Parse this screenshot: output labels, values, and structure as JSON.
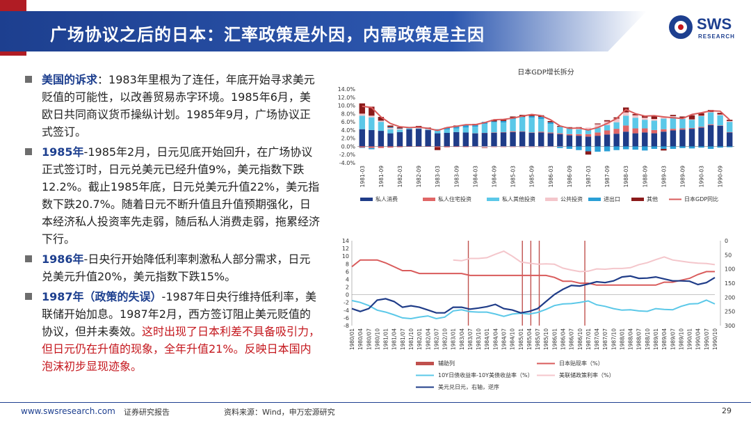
{
  "header": {
    "title": "广场协议之后的日本：汇率政策是外因，内需政策是主因",
    "logo_text": "SWS",
    "logo_sub": "RESEARCH"
  },
  "bullets": [
    {
      "head": "美国的诉求",
      "sep": "：",
      "text": "1983年里根为了连任，年底开始寻求美元贬值的可能性，以改善贸易赤字环境。1985年6月，美欧日共同商议货币操纵计划。1985年9月，广场协议正式签订。",
      "red": ""
    },
    {
      "head": "1985年",
      "sep": "-",
      "text": "1985年2月，日元见底开始回升，在广场协议正式签订时，日元兑美元已经升值9%，美元指数下跌12.2%。截止1985年底，日元兑美元升值22%，美元指数下跌20.7%。随着日元不断升值且升值预期强化，日本经济私人投资率先走弱，随后私人消费走弱，拖累经济下行。",
      "red": ""
    },
    {
      "head": "1986年",
      "sep": "-",
      "text": "日央行开始降低利率刺激私人部分需求，日元兑美元升值20%，美元指数下跌15%。",
      "red": ""
    },
    {
      "head": "1987年（政策的失误）",
      "sep": "-",
      "text": "1987年日央行维持低利率，美联储开始加息。1987年2月，西方签订阻止美元贬值的协议，但并未奏效。",
      "red": "这时出现了日本利差不具备吸引力，但日元仍在升值的现象，全年升值21%。反映日本国内泡沫初步显现迹象。"
    }
  ],
  "footer": {
    "url": "www.swsresearch.com",
    "category": "证券研究报告",
    "source": "资料来源：Wind，申万宏源研究",
    "page": "29"
  },
  "chart_data": [
    {
      "type": "bar",
      "stacked": true,
      "title": "日本GDP增长拆分",
      "ylim": [
        -4,
        14
      ],
      "yticks": [
        "14.0%",
        "12.0%",
        "10.0%",
        "8.0%",
        "6.0%",
        "4.0%",
        "2.0%",
        "0.0%",
        "-2.0%",
        "-4.0%"
      ],
      "categories": [
        "1981-03",
        "1981-06",
        "1981-09",
        "1981-12",
        "1982-03",
        "1982-06",
        "1982-09",
        "1982-12",
        "1983-03",
        "1983-06",
        "1983-09",
        "1983-12",
        "1984-03",
        "1984-06",
        "1984-09",
        "1984-12",
        "1985-03",
        "1985-06",
        "1985-09",
        "1985-12",
        "1986-03",
        "1986-06",
        "1986-09",
        "1986-12",
        "1987-03",
        "1987-06",
        "1987-09",
        "1987-12",
        "1988-03",
        "1988-06",
        "1988-09",
        "1988-12",
        "1989-03",
        "1989-06",
        "1989-09",
        "1989-12",
        "1990-03",
        "1990-06",
        "1990-09",
        "1990-12"
      ],
      "series": [
        {
          "name": "私人消费",
          "color": "#1f3c88",
          "values": [
            4.2,
            4.0,
            3.8,
            3.2,
            3.5,
            4.2,
            4.3,
            4.0,
            3.2,
            3.3,
            3.5,
            3.4,
            3.2,
            3.3,
            3.3,
            3.4,
            3.5,
            3.6,
            3.3,
            3.4,
            3.2,
            3.0,
            2.7,
            2.6,
            2.4,
            2.6,
            2.9,
            3.1,
            3.6,
            3.2,
            3.4,
            3.2,
            3.6,
            3.9,
            4.1,
            4.3,
            4.6,
            5.2,
            5.0,
            3.4
          ]
        },
        {
          "name": "私人住宅投资",
          "color": "#e06666",
          "values": [
            -0.3,
            -0.4,
            -0.4,
            -0.3,
            -0.2,
            -0.1,
            -0.1,
            -0.1,
            -0.2,
            -0.2,
            -0.1,
            -0.1,
            0.0,
            0.0,
            0.1,
            0.1,
            0.2,
            0.1,
            0.1,
            0.2,
            0.2,
            0.2,
            0.3,
            0.4,
            0.6,
            0.8,
            1.0,
            1.2,
            1.5,
            1.2,
            1.0,
            0.8,
            0.6,
            0.4,
            0.3,
            0.2,
            0.2,
            0.2,
            0.1,
            0.1
          ]
        },
        {
          "name": "私人其他投资",
          "color": "#5bc8e8",
          "values": [
            3.3,
            3.1,
            2.2,
            1.0,
            0.6,
            0.2,
            0.1,
            0.1,
            0.7,
            0.8,
            0.9,
            1.2,
            1.6,
            2.2,
            2.5,
            2.3,
            3.0,
            3.5,
            3.6,
            3.1,
            2.1,
            1.6,
            1.4,
            1.2,
            1.0,
            1.2,
            1.3,
            1.6,
            2.4,
            2.6,
            2.1,
            2.3,
            2.6,
            2.9,
            2.3,
            2.0,
            2.6,
            2.9,
            2.5,
            2.5
          ]
        },
        {
          "name": "公共投资",
          "color": "#f4c6cb",
          "values": [
            0.5,
            0.4,
            0.3,
            0.3,
            0.2,
            0.1,
            0.1,
            0.1,
            0.0,
            -0.1,
            -0.1,
            -0.2,
            -0.2,
            -0.3,
            -0.3,
            -0.3,
            -0.3,
            -0.3,
            -0.3,
            -0.3,
            -0.2,
            -0.1,
            0.1,
            0.3,
            0.6,
            0.8,
            0.9,
            0.9,
            0.8,
            0.6,
            0.5,
            0.4,
            0.3,
            0.2,
            0.2,
            0.1,
            0.1,
            0.1,
            0.2,
            0.2
          ]
        },
        {
          "name": "进出口",
          "color": "#2a9fd6",
          "values": [
            -0.1,
            -0.3,
            0.0,
            0.2,
            0.1,
            0.0,
            0.1,
            0.2,
            0.3,
            0.4,
            0.6,
            0.6,
            0.4,
            0.5,
            0.2,
            0.4,
            0.3,
            0.0,
            0.4,
            0.5,
            0.4,
            -0.3,
            -0.6,
            -0.9,
            -1.2,
            -1.3,
            -1.2,
            -0.9,
            -0.7,
            -0.8,
            -1.0,
            -0.6,
            -0.6,
            -0.6,
            -0.4,
            -0.5,
            -0.3,
            -0.6,
            -0.3,
            -0.2
          ]
        },
        {
          "name": "其他",
          "color": "#8b1a1a",
          "values": [
            2.5,
            2.2,
            0.9,
            0.4,
            0.3,
            0.2,
            0.4,
            0.2,
            -0.7,
            0.1,
            0.1,
            0.1,
            0.3,
            -0.1,
            0.4,
            0.3,
            0.3,
            0.5,
            0.4,
            0.4,
            0.3,
            0.2,
            0.2,
            0.2,
            -0.8,
            0.2,
            0.3,
            0.3,
            1.2,
            0.3,
            0.5,
            0.7,
            -0.4,
            0.3,
            0.4,
            1.0,
            0.6,
            0.5,
            0.4,
            0.3
          ]
        }
      ],
      "line": {
        "name": "日本GDP同比",
        "color": "#d95b5b",
        "values": [
          9.8,
          9.5,
          7.2,
          5.6,
          4.8,
          4.6,
          4.7,
          4.4,
          3.9,
          4.6,
          4.9,
          5.3,
          5.3,
          5.8,
          6.5,
          6.6,
          6.9,
          7.4,
          7.8,
          7.5,
          6.5,
          5.0,
          4.4,
          4.5,
          4.0,
          4.6,
          5.6,
          6.8,
          9.0,
          8.0,
          7.4,
          7.5,
          7.2,
          7.0,
          6.8,
          7.8,
          8.2,
          8.7,
          8.6,
          6.5
        ]
      }
    },
    {
      "type": "line",
      "ylim_left": [
        -8,
        14
      ],
      "yticks_left": [
        "14",
        "12",
        "10",
        "8",
        "6",
        "4",
        "2",
        "0",
        "-2",
        "-4",
        "-6",
        "-8"
      ],
      "ylim_right": [
        300,
        0
      ],
      "yticks_right": [
        "0",
        "50",
        "100",
        "150",
        "200",
        "250",
        "300"
      ],
      "x_labels": [
        "1980/01",
        "1980/04",
        "1980/07",
        "1980/10",
        "1981/01",
        "1981/04",
        "1981/07",
        "1981/10",
        "1982/01",
        "1982/04",
        "1982/07",
        "1982/10",
        "1983/01",
        "1983/04",
        "1983/07",
        "1983/10",
        "1984/01",
        "1984/04",
        "1984/07",
        "1984/10",
        "1985/01",
        "1985/04",
        "1985/07",
        "1985/10",
        "1986/01",
        "1986/04",
        "1986/07",
        "1986/10",
        "1987/01",
        "1987/04",
        "1987/07",
        "1987/10",
        "1988/01",
        "1988/04",
        "1988/07",
        "1988/10",
        "1989/01",
        "1989/04",
        "1989/07",
        "1989/10",
        "1990/01",
        "1990/04",
        "1990/07",
        "1990/10"
      ],
      "vlines_x": [
        13.8,
        20.2,
        21.2,
        22.2,
        27.6
      ],
      "vline_color": "#c0504d",
      "series": [
        {
          "name": "辅助列",
          "color": "#c0504d",
          "axis": "left",
          "kind": "vertical-markers",
          "values": []
        },
        {
          "name": "日本贴现率（%）",
          "color": "#d95b5b",
          "axis": "left",
          "values": [
            7.25,
            9.0,
            9.0,
            9.0,
            8.25,
            7.25,
            6.25,
            6.25,
            5.5,
            5.5,
            5.5,
            5.5,
            5.5,
            5.5,
            5.0,
            5.0,
            5.0,
            5.0,
            5.0,
            5.0,
            5.0,
            5.0,
            5.0,
            5.0,
            4.5,
            3.5,
            3.5,
            3.0,
            3.0,
            2.5,
            2.5,
            2.5,
            2.5,
            2.5,
            2.5,
            2.5,
            2.5,
            3.25,
            3.25,
            3.75,
            4.25,
            5.25,
            6.0,
            6.0
          ]
        },
        {
          "name": "10Y日债收益率-10Y美债收益率（%）",
          "color": "#5bc8e8",
          "axis": "left",
          "values": [
            -1.5,
            -2.0,
            -2.8,
            -4.0,
            -4.5,
            -5.2,
            -6.0,
            -6.2,
            -5.8,
            -5.5,
            -6.2,
            -5.8,
            -4.2,
            -3.9,
            -4.4,
            -4.5,
            -4.5,
            -5.0,
            -5.6,
            -5.0,
            -4.8,
            -5.0,
            -4.6,
            -3.8,
            -2.8,
            -2.4,
            -2.3,
            -2.0,
            -1.6,
            -2.6,
            -3.0,
            -3.6,
            -4.0,
            -3.9,
            -4.2,
            -4.3,
            -3.6,
            -3.8,
            -3.9,
            -3.0,
            -2.4,
            -2.3,
            -1.4,
            -2.4
          ]
        },
        {
          "name": "美联储政策利率（%）",
          "color": "#f4c6cb",
          "axis": "left",
          "values": [
            null,
            null,
            null,
            null,
            null,
            null,
            null,
            null,
            null,
            null,
            null,
            null,
            9.0,
            8.8,
            9.4,
            9.4,
            9.6,
            10.5,
            11.3,
            10.0,
            8.5,
            8.2,
            7.9,
            8.0,
            7.9,
            6.9,
            6.4,
            6.0,
            6.1,
            6.7,
            6.6,
            6.8,
            6.8,
            7.0,
            7.8,
            8.3,
            9.1,
            9.8,
            9.0,
            8.7,
            8.4,
            8.2,
            8.1,
            7.8
          ]
        },
        {
          "name": "美元兑日元，右轴，逆序",
          "color": "#1f3c88",
          "axis": "right",
          "values": [
            240,
            250,
            240,
            210,
            205,
            215,
            235,
            230,
            235,
            245,
            255,
            255,
            235,
            235,
            242,
            238,
            233,
            225,
            240,
            245,
            255,
            250,
            240,
            215,
            190,
            172,
            158,
            160,
            153,
            145,
            148,
            142,
            128,
            125,
            133,
            132,
            128,
            135,
            142,
            142,
            143,
            155,
            148,
            130
          ]
        }
      ]
    }
  ]
}
